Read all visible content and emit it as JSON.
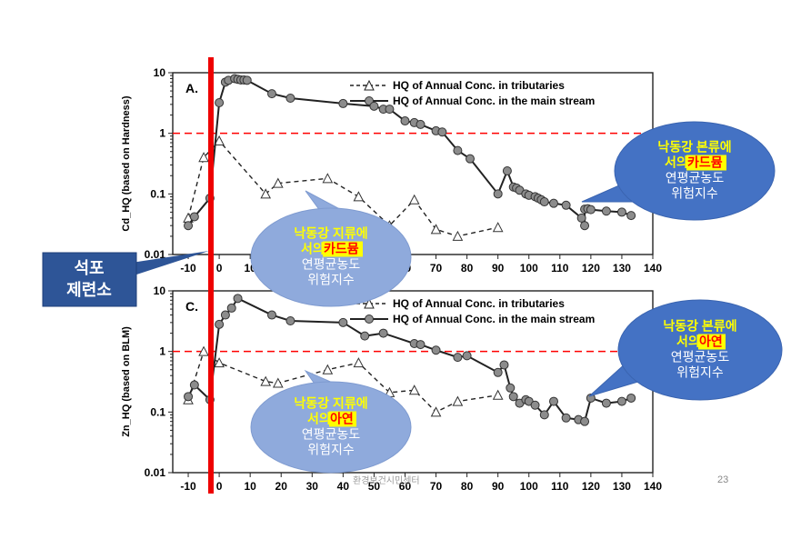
{
  "chart_data": [
    {
      "type": "line",
      "panel_letter": "A.",
      "ylabel": "Cd_HQ (based on Hardness)",
      "y_scale": "log",
      "ylim": [
        0.01,
        10
      ],
      "xlim": [
        -15,
        140
      ],
      "x_ticks": [
        "-10",
        "0",
        "10",
        "20",
        "30",
        "40",
        "50",
        "60",
        "70",
        "80",
        "90",
        "100",
        "110",
        "120",
        "130",
        "140"
      ],
      "y_ticks": [
        "0.01",
        "0.1",
        "1",
        "10"
      ],
      "threshold": 1,
      "legend": [
        "HQ of Annual Conc. in tributaries",
        "HQ of Annual Conc. in the main stream"
      ],
      "series": [
        {
          "name": "HQ of Annual Conc. in tributaries",
          "marker": "triangle",
          "line": "dashed",
          "x": [
            -10,
            -5,
            0,
            15,
            19,
            35,
            45,
            55,
            63,
            70,
            77,
            90
          ],
          "y": [
            0.04,
            0.4,
            0.75,
            0.1,
            0.15,
            0.18,
            0.09,
            0.03,
            0.08,
            0.026,
            0.02,
            0.028
          ]
        },
        {
          "name": "HQ of Annual Conc. in the main stream",
          "marker": "circle",
          "line": "solid",
          "x": [
            -10,
            -8,
            -3,
            0,
            2,
            3,
            5,
            6,
            7,
            8,
            9,
            17,
            23,
            40,
            50,
            53,
            55,
            60,
            63,
            65,
            70,
            72,
            77,
            81,
            90,
            93,
            95,
            96,
            97,
            99,
            100,
            102,
            103,
            104,
            105,
            108,
            112,
            117,
            118,
            118,
            119,
            120,
            125,
            130,
            133
          ],
          "y": [
            0.03,
            0.042,
            0.085,
            3.2,
            7,
            7.5,
            8,
            7.8,
            7.6,
            7.6,
            7.5,
            4.5,
            3.8,
            3.1,
            2.8,
            2.5,
            2.5,
            1.6,
            1.5,
            1.4,
            1.1,
            1.05,
            0.52,
            0.38,
            0.1,
            0.24,
            0.13,
            0.125,
            0.115,
            0.1,
            0.095,
            0.09,
            0.085,
            0.08,
            0.074,
            0.07,
            0.065,
            0.04,
            0.03,
            0.056,
            0.057,
            0.055,
            0.052,
            0.05,
            0.044
          ]
        }
      ]
    },
    {
      "type": "line",
      "panel_letter": "C.",
      "ylabel": "Zn_HQ (based on BLM)",
      "y_scale": "log",
      "ylim": [
        0.01,
        10
      ],
      "xlim": [
        -15,
        140
      ],
      "x_ticks": [
        "-10",
        "0",
        "10",
        "20",
        "30",
        "40",
        "50",
        "60",
        "70",
        "80",
        "90",
        "100",
        "110",
        "120",
        "130",
        "140"
      ],
      "y_ticks": [
        "0.01",
        "0.1",
        "1",
        "10"
      ],
      "threshold": 1,
      "legend": [
        "HQ of Annual Conc. in tributaries",
        "HQ of Annual Conc. in the main stream"
      ],
      "series": [
        {
          "name": "HQ of Annual Conc. in tributaries",
          "marker": "triangle",
          "line": "dashed",
          "x": [
            -10,
            -5,
            0,
            15,
            19,
            35,
            45,
            55,
            63,
            70,
            77,
            90
          ],
          "y": [
            0.16,
            1.0,
            0.65,
            0.32,
            0.3,
            0.5,
            0.65,
            0.21,
            0.23,
            0.1,
            0.15,
            0.19
          ]
        },
        {
          "name": "HQ of Annual Conc. in the main stream",
          "marker": "circle",
          "line": "solid",
          "x": [
            -10,
            -8,
            -3,
            0,
            2,
            4,
            6,
            17,
            23,
            40,
            47,
            53,
            63,
            65,
            70,
            77,
            80,
            90,
            92,
            94,
            95,
            97,
            99,
            100,
            102,
            105,
            108,
            112,
            116,
            118,
            120,
            125,
            130,
            133
          ],
          "y": [
            0.18,
            0.28,
            0.16,
            2.8,
            4,
            5.2,
            7.5,
            4,
            3.2,
            3.0,
            1.8,
            2,
            1.35,
            1.3,
            1.05,
            0.8,
            0.85,
            0.45,
            0.6,
            0.25,
            0.18,
            0.14,
            0.16,
            0.15,
            0.13,
            0.09,
            0.15,
            0.08,
            0.075,
            0.07,
            0.17,
            0.14,
            0.15,
            0.17
          ]
        }
      ]
    }
  ],
  "boxes": {
    "left_label": [
      "석포",
      "제련소"
    ],
    "callout_a_right": {
      "line1": "낙동강 본류에",
      "line2_prefix": "서의 ",
      "line2_highlight": "카드뮴",
      "line3": "연평균농도",
      "line4": "위험지수"
    },
    "callout_a_center": {
      "line1": "낙동강 지류에",
      "line2_prefix": "서의 ",
      "line2_highlight": "카드뮴",
      "line3": "연평균농도",
      "line4": "위험지수"
    },
    "callout_c_right": {
      "line1": "낙동강 본류에",
      "line2_prefix": "서의 ",
      "line2_highlight": "아연",
      "line3": "연평균농도",
      "line4": "위험지수"
    },
    "callout_c_center": {
      "line1": "낙동강 지류에",
      "line2_prefix": "서의 ",
      "line2_highlight": "아연",
      "line3": "연평균농도",
      "line4": "위험지수"
    }
  },
  "footer": "환경보건시민센터",
  "page_number": "23",
  "colors": {
    "threshold": "#ff0000",
    "smelter_line": "#ee0000",
    "callout_dark": "#4472c4",
    "callout_light": "#8faadc",
    "highlight": "#ffff00",
    "label_box": "#2e5597"
  }
}
